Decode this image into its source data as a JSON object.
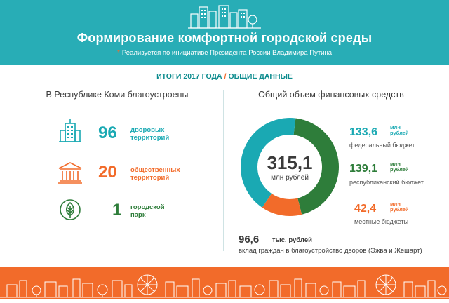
{
  "header": {
    "title": "Формирование комфортной городской среды",
    "subtitle": "Реализуется по инициативе Президента России Владимира Путина",
    "star": "*"
  },
  "results": {
    "part1": "ИТОГИ 2017 ГОДА",
    "slash": "/",
    "part2": "ОБЩИЕ ДАННЫЕ"
  },
  "left": {
    "title": "В Республике Коми благоустроены",
    "items": [
      {
        "value": "96",
        "label": "дворовых территорий",
        "line1": "дворовых",
        "line2": "территорий",
        "icon": "building-icon",
        "color": "#1aa9b3"
      },
      {
        "value": "20",
        "label": "общественных территорий",
        "line1": "общественных",
        "line2": "территорий",
        "icon": "columns-building-icon",
        "color": "#f26b2a"
      },
      {
        "value": "1",
        "label": "городской парк",
        "line1": "городской",
        "line2": "парк",
        "icon": "tree-icon",
        "color": "#2e7d3a"
      }
    ]
  },
  "right": {
    "title": "Общий объем финансовых средств",
    "total": "315,1",
    "total_unit": "млн рублей",
    "sources": [
      {
        "value": "133,6",
        "unit1": "млн",
        "unit2": "рублей",
        "desc": "федеральный бюджет",
        "amount": 133.6,
        "color": "#1aa9b3"
      },
      {
        "value": "139,1",
        "unit1": "млн",
        "unit2": "рублей",
        "desc": "республиканский бюджет",
        "amount": 139.1,
        "color": "#2e7d3a"
      },
      {
        "value": "42,4",
        "unit1": "млн",
        "unit2": "рублей",
        "desc": "местные бюджеты",
        "amount": 42.4,
        "color": "#f26b2a"
      }
    ],
    "citizens": {
      "value": "96,6",
      "unit": "тыс. рублей",
      "desc": "вклад граждан в благоустройство дворов (Эжва и Жешарт)"
    }
  },
  "colors": {
    "teal": "#28adb6",
    "orange": "#f26b2a",
    "green": "#2e7d3a"
  }
}
